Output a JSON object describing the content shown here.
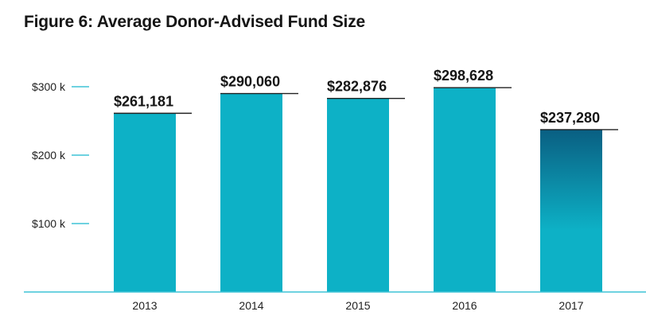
{
  "chart_data": {
    "type": "bar",
    "title": "Figure 6: Average Donor-Advised Fund Size",
    "xlabel": "",
    "ylabel": "",
    "categories": [
      "2013",
      "2014",
      "2015",
      "2016",
      "2017"
    ],
    "values": [
      261181,
      290060,
      282876,
      298628,
      237280
    ],
    "data_labels": [
      "$261,181",
      "$290,060",
      "$282,876",
      "$298,628",
      "$237,280"
    ],
    "yticks": [
      100000,
      200000,
      300000
    ],
    "ytick_labels": [
      "$100 k",
      "$200 k",
      "$300 k"
    ],
    "ylim": [
      0,
      300000
    ],
    "grid": false,
    "legend": "none",
    "colors": {
      "bar": "#0db1c6",
      "highlight_top": "#0a5f82",
      "tick_mark": "#3ec3d6",
      "baseline": "#3ec3d6",
      "cap_line": "#222222"
    },
    "highlight_index": 4
  }
}
